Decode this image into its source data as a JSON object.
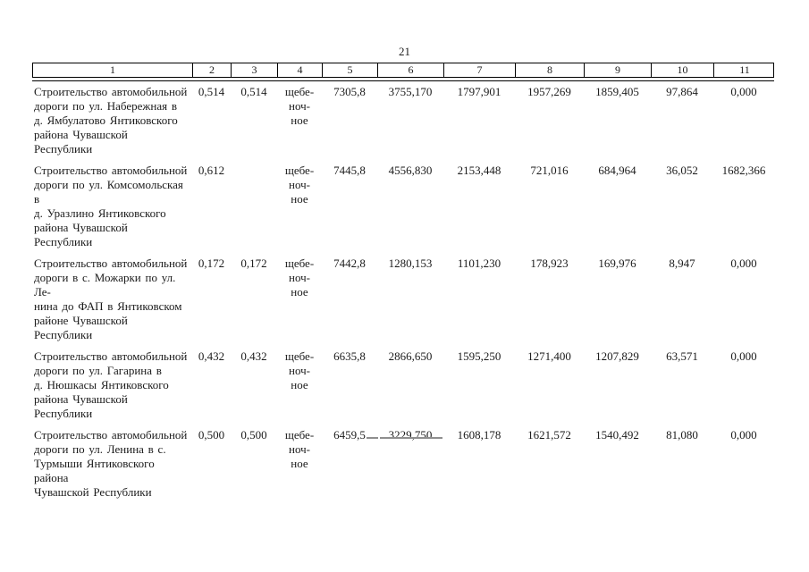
{
  "page": {
    "number": "21"
  },
  "table": {
    "header": [
      "1",
      "2",
      "3",
      "4",
      "5",
      "6",
      "7",
      "8",
      "9",
      "10",
      "11"
    ],
    "rows": [
      {
        "cells": [
          "Строительство автомобильной\nдороги по ул. Набережная в\nд. Ямбулатово Янтиковского\nрайона Чувашской Республики",
          "0,514",
          "0,514",
          "щебе-\nноч-\nное",
          "7305,8",
          "3755,170",
          "1797,901",
          "1957,269",
          "1859,405",
          "97,864",
          "0,000"
        ]
      },
      {
        "cells": [
          "Строительство автомобильной\nдороги по ул. Комсомольская в\nд. Уразлино Янтиковского\nрайона Чувашской Республики",
          "0,612",
          "",
          "щебе-\nноч-\nное",
          "7445,8",
          "4556,830",
          "2153,448",
          "721,016",
          "684,964",
          "36,052",
          "1682,366"
        ]
      },
      {
        "cells": [
          "Строительство автомобильной\nдороги в с. Можарки по ул. Ле-\nнина до ФАП в Янтиковском\nрайоне Чувашской Республики",
          "0,172",
          "0,172",
          "щебе-\nноч-\nное",
          "7442,8",
          "1280,153",
          "1101,230",
          "178,923",
          "169,976",
          "8,947",
          "0,000"
        ]
      },
      {
        "cells": [
          "Строительство автомобильной\nдороги по ул. Гагарина в\nд. Нюшкасы Янтиковского\nрайона Чувашской Республики",
          "0,432",
          "0,432",
          "щебе-\nноч-\nное",
          "6635,8",
          "2866,650",
          "1595,250",
          "1271,400",
          "1207,829",
          "63,571",
          "0,000"
        ]
      },
      {
        "cells": [
          "Строительство автомобильной\nдороги по ул. Ленина в с.\nТурмыши Янтиковского района\nЧувашской Республики",
          "0,500",
          "0,500",
          "щебе-\nноч-\nное",
          "6459,5",
          "3229,750",
          "1608,178",
          "1621,572",
          "1540,492",
          "81,080",
          "0,000"
        ]
      }
    ]
  }
}
